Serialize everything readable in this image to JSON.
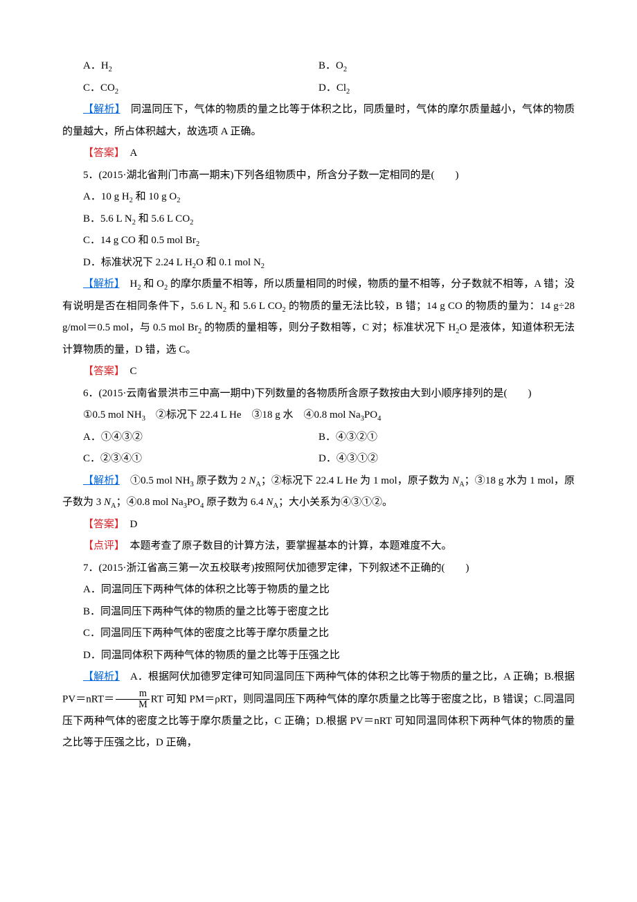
{
  "colors": {
    "blue": "#0066dd",
    "red": "#d8262a",
    "text": "#000000",
    "bg": "#ffffff"
  },
  "typography": {
    "body_fontsize_pt": 11,
    "line_height": 2.1,
    "indent_em": 2
  },
  "q4_options": {
    "A": "A．H",
    "A_sub": "2",
    "B": "B．O",
    "B_sub": "2",
    "C": "C．CO",
    "C_sub": "2",
    "D": "D．Cl",
    "D_sub": "2"
  },
  "q4_analysis_label": "【解析】",
  "q4_analysis": "　同温同压下，气体的物质的量之比等于体积之比，同质量时，气体的摩尔质量越小，气体的物质的量越大，所占体积越大，故选项 A 正确。",
  "q4_answer_label": "【答案】",
  "q4_answer": "　A",
  "q5_stem_a": "5．(2015·湖北省荆门市高一期末)下列各组物质中，所含分子数一定相同的是(",
  "q5_stem_b": ")",
  "q5_optA_1": "A．10 g H",
  "q5_optA_2": " 和 10 g O",
  "q5_optB_1": "B．5.6 L N",
  "q5_optB_2": " 和 5.6 L CO",
  "q5_optC_1": "C．14 g CO 和 0.5 mol Br",
  "q5_optD_1": "D．标准状况下 2.24 L H",
  "q5_optD_2": "O 和 0.1 mol N",
  "q5_analysis_label": "【解析】",
  "q5_analysis_1a": "　H",
  "q5_analysis_1b": " 和 O",
  "q5_analysis_1c": " 的摩尔质量不相等，所以质量相同的时候，物质的量不相等，分子数就不相等，A 错；没有说明是否在相同条件下，5.6 L N",
  "q5_analysis_1d": " 和 5.6 L CO",
  "q5_analysis_1e": " 的物质的量无法比较，B 错；14 g CO 的物质的量为：14 g÷28 g/mol＝0.5 mol，与 0.5 mol Br",
  "q5_analysis_1f": " 的物质的量相等，则分子数相等，C 对；标准状况下 H",
  "q5_analysis_1g": "O 是液体，知道体积无法计算物质的量，D 错，选 C。",
  "q5_answer_label": "【答案】",
  "q5_answer": "　C",
  "q6_stem": "6．(2015·云南省景洪市三中高一期中)下列数量的各物质所含原子数按由大到小顺序排列的是(　　)",
  "q6_given_1": "①0.5 mol NH",
  "q6_given_2": "　②标况下 22.4 L He　③18 g 水　④0.8 mol Na",
  "q6_given_3": "PO",
  "q6_optAB": {
    "A": "A．①④③②",
    "B": "B．④③②①"
  },
  "q6_optCD": {
    "C": "C．②③④①",
    "D": "D．④③①②"
  },
  "q6_analysis_label": "【解析】",
  "q6_analysis_a": "　①0.5 mol NH",
  "q6_analysis_b": " 原子数为 2 ",
  "q6_NA": "N",
  "q6_Asub": "A",
  "q6_analysis_c": "；②标况下 22.4 L He 为 1 mol，原子数为 ",
  "q6_analysis_d": "；③18 g 水为 1 mol，原子数为 3 ",
  "q6_analysis_e": "；④0.8 mol Na",
  "q6_analysis_f": "PO",
  "q6_analysis_g": " 原子数为 6.4 ",
  "q6_analysis_h": "；大小关系为④③①②。",
  "q6_answer_label": "【答案】",
  "q6_answer": "　D",
  "q6_comment_label": "【点评】",
  "q6_comment": "　本题考查了原子数目的计算方法，要掌握基本的计算，本题难度不大。",
  "q7_stem": "7．(2015·浙江省高三第一次五校联考)按照阿伏加德罗定律，下列叙述不正确的(　　)",
  "q7_optA": "A．同温同压下两种气体的体积之比等于物质的量之比",
  "q7_optB": "B．同温同压下两种气体的物质的量之比等于密度之比",
  "q7_optC": "C．同温同压下两种气体的密度之比等于摩尔质量之比",
  "q7_optD": "D．同温同体积下两种气体的物质的量之比等于压强之比",
  "q7_analysis_label": "【解析】",
  "q7_analysis_1": "　A．根据阿伏加德罗定律可知同温同压下两种气体的体积之比等于物质的量之比，A 正确；B.根据 PV＝nRT＝",
  "q7_frac_num": "m",
  "q7_frac_den": "M",
  "q7_analysis_2": "RT 可知 PM＝ρRT，则同温同压下两种气体的摩尔质量之比等于密度之比，B 错误；C.同温同压下两种气体的密度之比等于摩尔质量之比，C 正确；D.根据 PV＝nRT 可知同温同体积下两种气体的物质的量之比等于压强之比，D 正确，"
}
